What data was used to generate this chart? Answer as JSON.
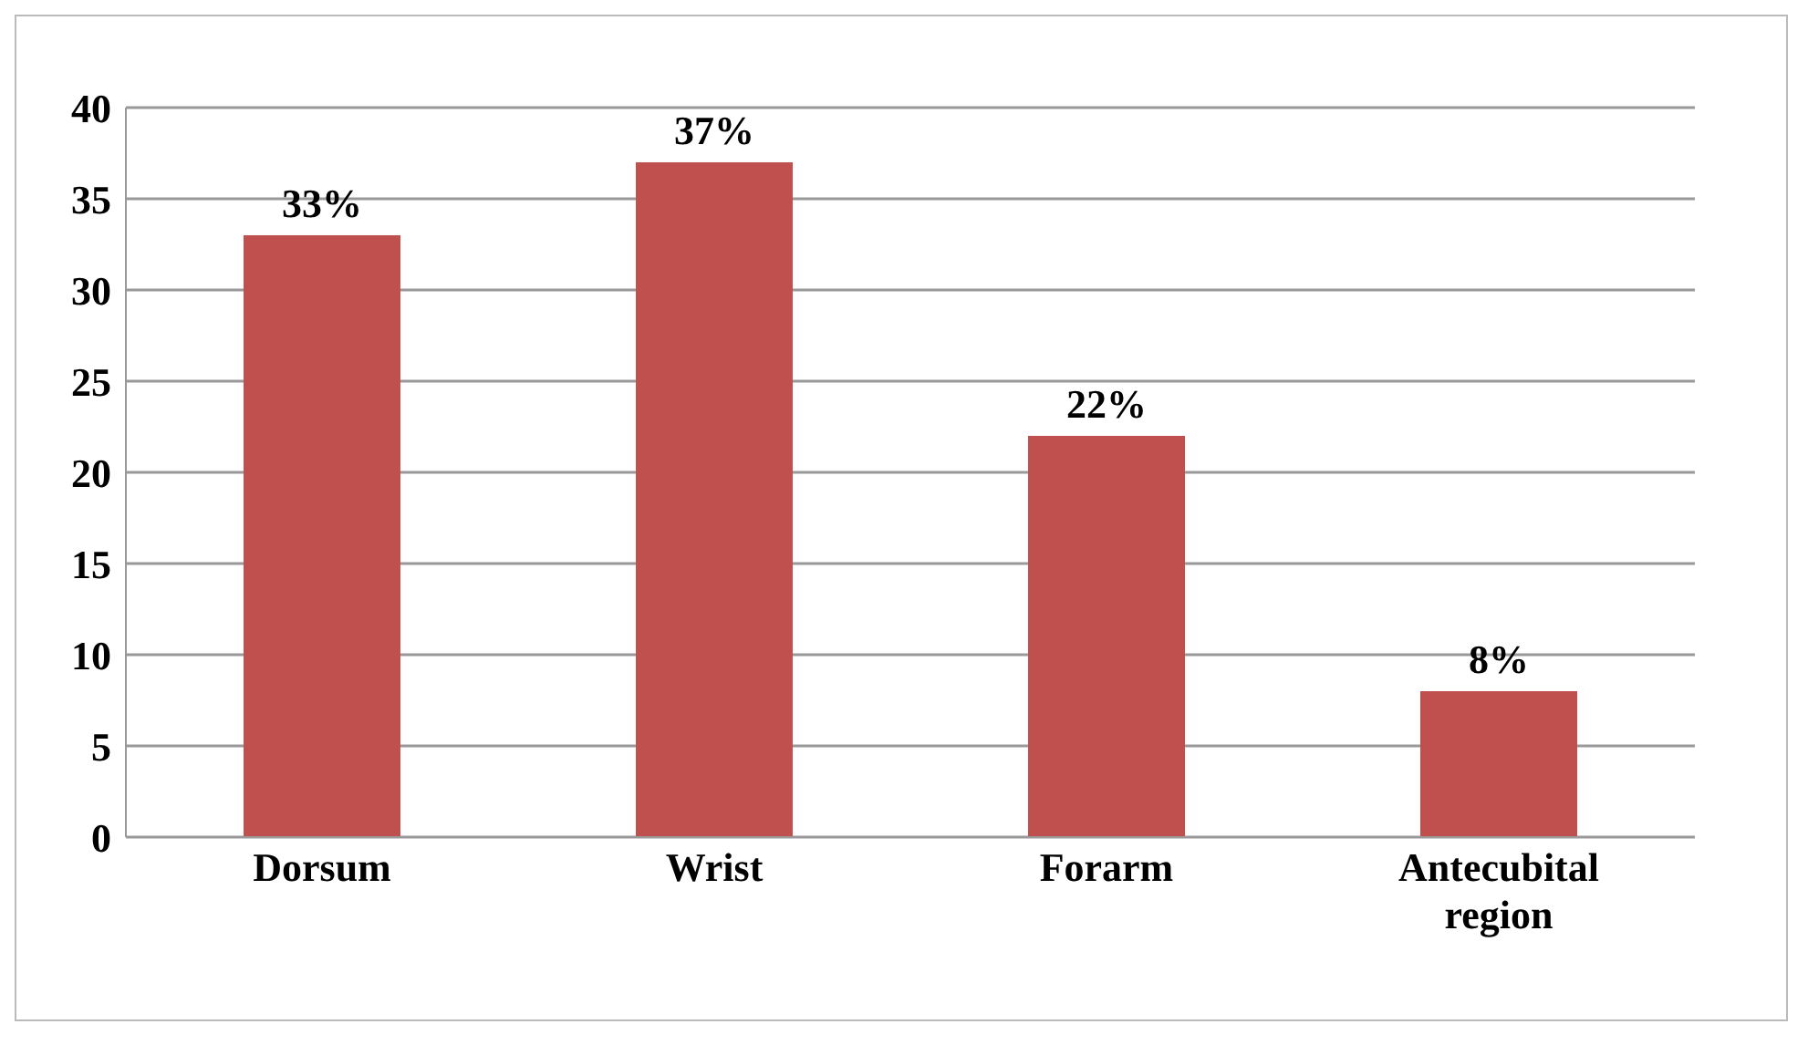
{
  "chart_data": {
    "type": "bar",
    "categories": [
      "Dorsum",
      "Wrist",
      "Forarm",
      "Antecubital region"
    ],
    "values": [
      33,
      37,
      22,
      8
    ],
    "value_labels": [
      "33%",
      "37%",
      "22%",
      "8%"
    ],
    "color": "#c0504d",
    "ylim": [
      0,
      40
    ],
    "yticks": [
      0,
      5,
      10,
      15,
      20,
      25,
      30,
      35,
      40
    ],
    "grid": "y"
  }
}
